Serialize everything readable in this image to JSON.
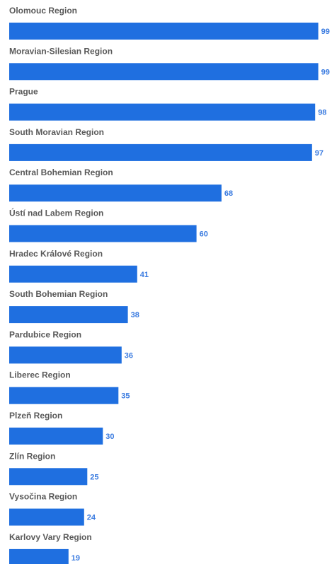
{
  "chart_data": {
    "type": "bar",
    "orientation": "horizontal",
    "categories": [
      "Olomouc Region",
      "Moravian-Silesian Region",
      "Prague",
      "South Moravian Region",
      "Central Bohemian Region",
      "Ústí nad Labem Region",
      "Hradec Králové Region",
      "South Bohemian Region",
      "Pardubice Region",
      "Liberec Region",
      "Plzeň Region",
      "Zlín Region",
      "Vysočina Region",
      "Karlovy Vary Region"
    ],
    "values": [
      99,
      99,
      98,
      97,
      68,
      60,
      41,
      38,
      36,
      35,
      30,
      25,
      24,
      19
    ],
    "value_labels": [
      "99",
      "99",
      "98",
      "97",
      "68",
      "60",
      "41",
      "38",
      "36",
      "35",
      "30",
      "25",
      "24",
      "19"
    ],
    "title": "",
    "xlabel": "",
    "ylabel": "",
    "xlim": [
      0,
      100
    ],
    "grid": false,
    "legend": "none",
    "bar_color": "#1f6fe0",
    "value_label_color": "#3a7be0",
    "label_color": "#595959"
  }
}
